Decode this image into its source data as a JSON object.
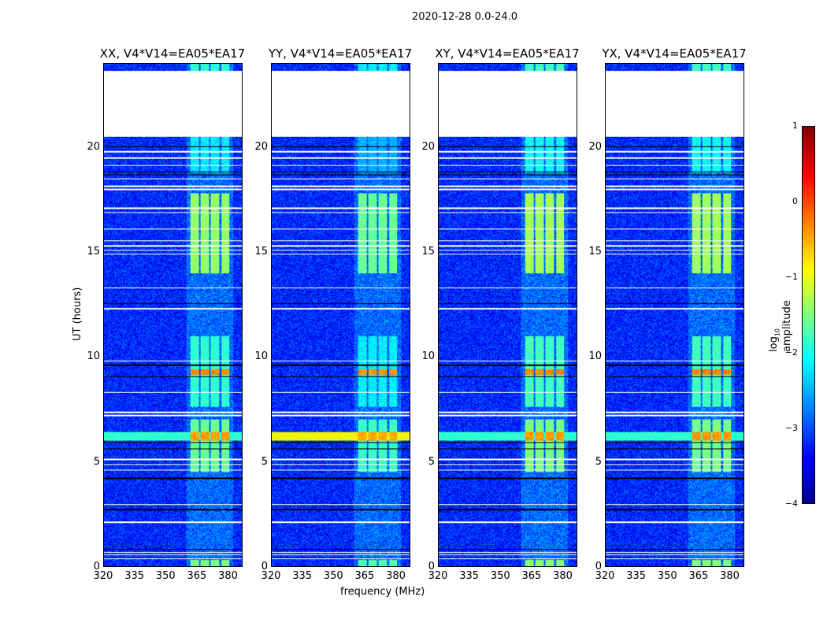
{
  "chart_data": {
    "type": "heatmap",
    "suptitle": "2020-12-28 0.0-24.0",
    "xlabel": "frequency (MHz)",
    "ylabel": "UT (hours)",
    "xlim": [
      320,
      387
    ],
    "ylim": [
      0,
      24
    ],
    "xticks": [
      "320",
      "335",
      "350",
      "365",
      "380"
    ],
    "yticks": [
      "0",
      "5",
      "10",
      "15",
      "20"
    ],
    "xtick_values": [
      320,
      335,
      350,
      365,
      380
    ],
    "ytick_values": [
      0,
      5,
      10,
      15,
      20
    ],
    "colorbar": {
      "label_prefix": "log",
      "label_sub": "10",
      "label_suffix": " amplitude",
      "cmap": "jet",
      "range": [
        -4,
        1
      ],
      "ticks": [
        "1",
        "0",
        "−1",
        "−2",
        "−3",
        "−4"
      ],
      "tick_values": [
        1,
        0,
        -1,
        -2,
        -3,
        -4
      ]
    },
    "background_level": -3.2,
    "no_data_hours": [
      [
        20.5,
        23.65
      ]
    ],
    "rfi_channels_mhz": [
      [
        362,
        366
      ],
      [
        367,
        371
      ],
      [
        372,
        376
      ],
      [
        377,
        381
      ]
    ],
    "rfi_periods": [
      {
        "hours": [
          0,
          0.3
        ],
        "level": -1.5
      },
      {
        "hours": [
          4.5,
          7.0
        ],
        "level": -1.6
      },
      {
        "hours": [
          6.0,
          6.4
        ],
        "level": -0.4
      },
      {
        "hours": [
          7.6,
          11.0
        ],
        "level": -1.9
      },
      {
        "hours": [
          9.15,
          9.4
        ],
        "level": -0.3
      },
      {
        "hours": [
          14.0,
          17.8
        ],
        "level": -1.4
      },
      {
        "hours": [
          18.8,
          20.5
        ],
        "level": -2.2
      },
      {
        "hours": [
          23.65,
          24
        ],
        "level": -1.9
      }
    ],
    "broadband_hours": [
      [
        6.0,
        6.4
      ]
    ],
    "flagged_hours_white": [
      0.35,
      0.55,
      0.65,
      2.1,
      2.95,
      4.6,
      4.85,
      5.1,
      7.2,
      7.35,
      8.3,
      9.8,
      12.3,
      13.3,
      14.9,
      15.1,
      15.3,
      15.55,
      16.1,
      16.9,
      17.1,
      18.0,
      18.15,
      18.5,
      19.15,
      19.5,
      19.8
    ],
    "flagged_hours_black": [
      0.82,
      2.7,
      4.2,
      5.6,
      5.9,
      9.05,
      9.6,
      12.55,
      18.7,
      18.85,
      20.05
    ],
    "panels": [
      {
        "title": "XX, V4*V14=EA05*EA17",
        "gain": 1.0
      },
      {
        "title": "YY, V4*V14=EA05*EA17",
        "gain": 1.15
      },
      {
        "title": "XY, V4*V14=EA05*EA17",
        "gain": 0.95
      },
      {
        "title": "YX, V4*V14=EA05*EA17",
        "gain": 0.95
      }
    ]
  }
}
